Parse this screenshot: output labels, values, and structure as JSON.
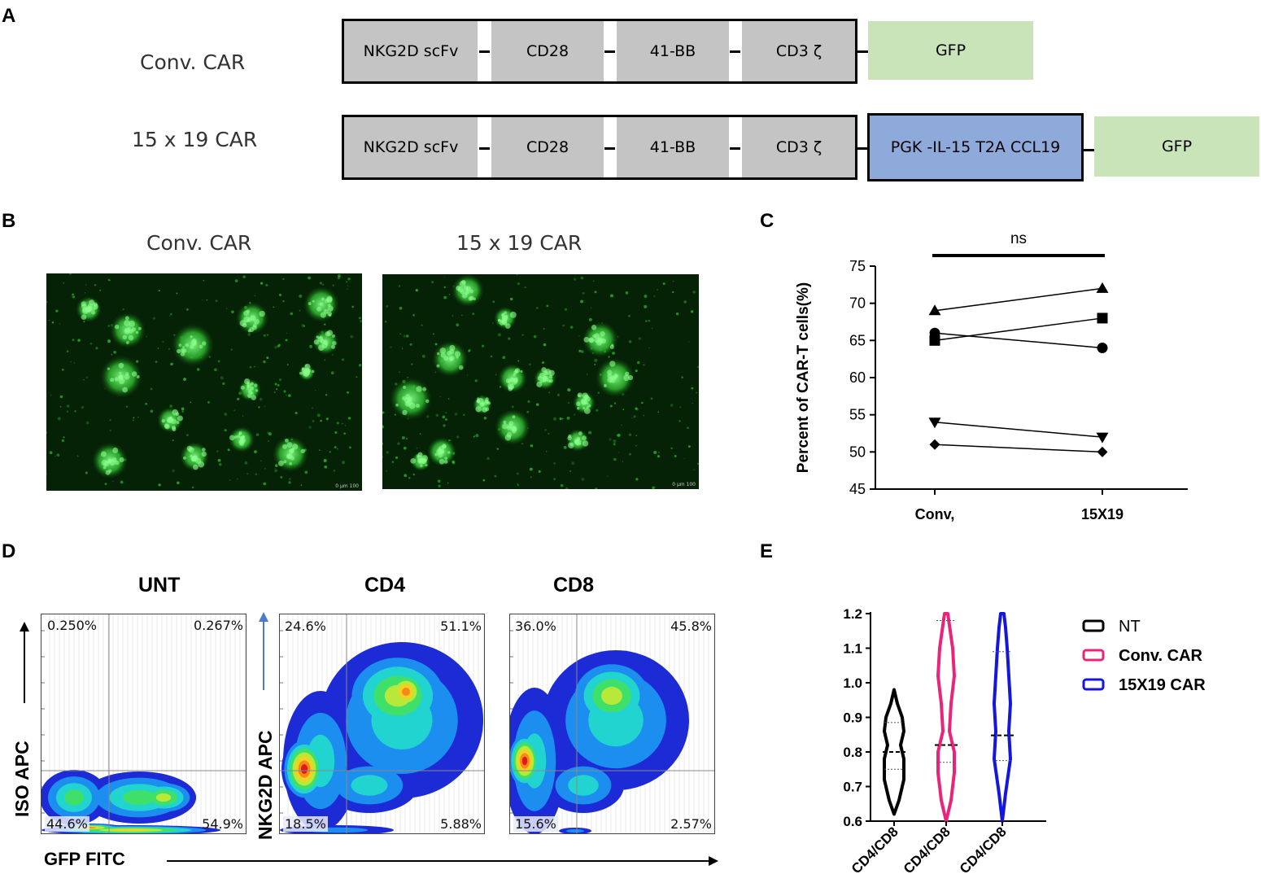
{
  "panel_letters": {
    "a": "A",
    "b": "B",
    "c": "C",
    "d": "D",
    "e": "E"
  },
  "panel_a": {
    "conv_label": "Conv. CAR",
    "car15x19_label": "15 x 19 CAR",
    "segments": {
      "nkg2d": "NKG2D scFv",
      "cd28": "CD28",
      "bb41": "41-BB",
      "cd3z": "CD3 ζ",
      "gfp": "GFP",
      "pgk": "PGK -IL-15 T2A CCL19"
    },
    "colors": {
      "domain": "#c4c4c4",
      "gfp": "#c9e4b9",
      "pgk": "#8eaadb"
    }
  },
  "panel_b": {
    "conv_label": "Conv. CAR",
    "car15x19_label": "15 x 19 CAR",
    "scale_text": "0 μm 100"
  },
  "chart_data": [
    {
      "panel": "C",
      "type": "line",
      "title": "",
      "ylabel": "Percent of CAR-T cells(%)",
      "xlabel": "",
      "categories": [
        "Conv,",
        "15X19"
      ],
      "ylim": [
        45,
        75
      ],
      "yticks": [
        45,
        50,
        55,
        60,
        65,
        70,
        75
      ],
      "significance": "ns",
      "grid": false,
      "series": [
        {
          "marker": "triangle-up",
          "values": [
            69,
            72
          ]
        },
        {
          "marker": "square",
          "values": [
            65,
            68
          ]
        },
        {
          "marker": "circle",
          "values": [
            66,
            64
          ]
        },
        {
          "marker": "triangle-down",
          "values": [
            54,
            52
          ]
        },
        {
          "marker": "diamond",
          "values": [
            51,
            50
          ]
        }
      ]
    },
    {
      "panel": "D",
      "type": "heatmap",
      "xlabel": "GFP FITC",
      "plots": [
        {
          "title": "UNT",
          "ylabel": "ISO APC",
          "quadrants": {
            "ul": "0.250%",
            "ur": "0.267%",
            "ll": "44.6%",
            "lr": "54.9%"
          }
        },
        {
          "title": "CD4",
          "ylabel": "NKG2D APC",
          "quadrants": {
            "ul": "24.6%",
            "ur": "51.1%",
            "ll": "18.5%",
            "lr": "5.88%"
          }
        },
        {
          "title": "CD8",
          "ylabel": "",
          "quadrants": {
            "ul": "36.0%",
            "ur": "45.8%",
            "ll": "15.6%",
            "lr": "2.57%"
          }
        }
      ]
    },
    {
      "panel": "E",
      "type": "violin",
      "categories": [
        "CD4/CD8",
        "CD4/CD8",
        "CD4/CD8"
      ],
      "ylim": [
        0.6,
        1.2
      ],
      "yticks": [
        "0.6",
        "0.7",
        "0.8",
        "0.9",
        "1.0",
        "1.1",
        "1.2"
      ],
      "series": [
        {
          "name": "NT",
          "color": "#000000",
          "min": 0.62,
          "max": 0.98,
          "median": 0.8,
          "q1": 0.75,
          "q3": 0.885
        },
        {
          "name": "Conv. CAR",
          "color": "#e8257b",
          "min": 0.6,
          "max": 1.2,
          "median": 0.82,
          "q1": 0.77,
          "q3": 1.18
        },
        {
          "name": "15X19 CAR",
          "color": "#1515e0",
          "min": 0.6,
          "max": 1.2,
          "median": 0.848,
          "q1": 0.775,
          "q3": 1.09
        }
      ]
    }
  ]
}
